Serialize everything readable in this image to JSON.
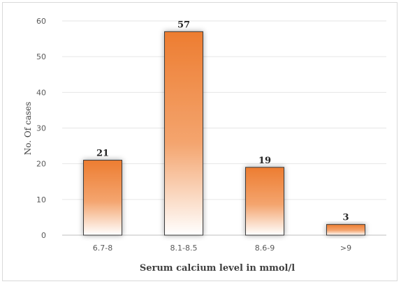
{
  "chart_data": {
    "type": "bar",
    "categories": [
      "6.7-8",
      "8.1-8.5",
      "8.6-9",
      ">9"
    ],
    "values": [
      21,
      57,
      19,
      3
    ],
    "data_labels": [
      "21",
      "57",
      "19",
      "3"
    ],
    "title": "",
    "xlabel": "Serum calcium level in mmol/l",
    "ylabel": "No. Of cases",
    "ylim": [
      0,
      60
    ],
    "yticks": [
      0,
      10,
      20,
      30,
      40,
      50,
      60
    ],
    "grid": true,
    "legend": "none",
    "colors": {
      "bar_top": "#ed7d31",
      "bar_bottom": "#ffffff",
      "gridline": "#e6e6e6",
      "axis": "#bfbfbf"
    }
  }
}
